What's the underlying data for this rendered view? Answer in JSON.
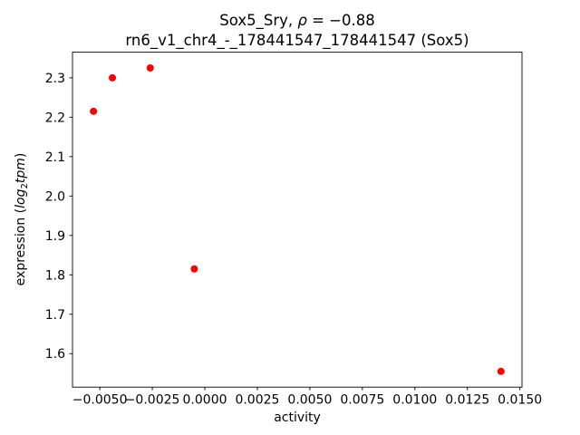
{
  "chart_data": {
    "type": "scatter",
    "title": {
      "line1_prefix": "Sox5_Sry, ",
      "line1_rho": "ρ",
      "line1_rest": " = −0.88",
      "line2": "rn6_v1_chr4_-_178441547_178441547 (Sox5)"
    },
    "xlabel": "activity",
    "ylabel": {
      "prefix": "expression (",
      "italic1": "log",
      "sub": "2",
      "italic2": "tpm",
      "close": ")"
    },
    "marker_color": "#ff0000",
    "axis_color": "#000000",
    "xlim": [
      -0.0063,
      0.0151
    ],
    "ylim": [
      1.515,
      2.365
    ],
    "xticks": {
      "values": [
        -0.005,
        -0.0025,
        0.0,
        0.0025,
        0.005,
        0.0075,
        0.01,
        0.0125,
        0.015
      ],
      "labels": [
        "−0.0050",
        "−0.0025",
        "0.0000",
        "0.0025",
        "0.0050",
        "0.0075",
        "0.0100",
        "0.0125",
        "0.0150"
      ]
    },
    "yticks": {
      "values": [
        1.6,
        1.7,
        1.8,
        1.9,
        2.0,
        2.1,
        2.2,
        2.3
      ],
      "labels": [
        "1.6",
        "1.7",
        "1.8",
        "1.9",
        "2.0",
        "2.1",
        "2.2",
        "2.3"
      ]
    },
    "points": [
      {
        "x": -0.0053,
        "y": 2.215
      },
      {
        "x": -0.0044,
        "y": 2.3
      },
      {
        "x": -0.0026,
        "y": 2.325
      },
      {
        "x": -0.0005,
        "y": 1.815
      },
      {
        "x": 0.0141,
        "y": 1.555
      }
    ],
    "legend": "none",
    "grid": false
  }
}
